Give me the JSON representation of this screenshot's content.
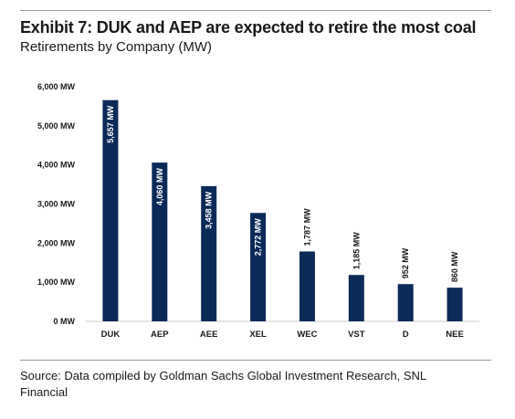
{
  "header": {
    "title": "Exhibit 7: DUK and AEP are expected to retire the most coal",
    "subtitle": "Retirements by Company (MW)"
  },
  "footer": {
    "source": "Source: Data compiled by Goldman Sachs Global Investment Research, SNL Financial"
  },
  "colors": {
    "bar": "#0b2a57",
    "bar_label": "#ffffff",
    "outside_label": "#1a1a1a"
  },
  "chart_data": {
    "type": "bar",
    "title": "Exhibit 7: DUK and AEP are expected to retire the most coal",
    "subtitle": "Retirements by Company (MW)",
    "categories": [
      "DUK",
      "AEP",
      "AEE",
      "XEL",
      "WEC",
      "VST",
      "D",
      "NEE"
    ],
    "values": [
      5657,
      4060,
      3458,
      2772,
      1787,
      1185,
      952,
      860
    ],
    "data_labels": [
      "5,657 MW",
      "4,060 MW",
      "3,458 MW",
      "2,772 MW",
      "1,787 MW",
      "1,185 MW",
      "952 MW",
      "860 MW"
    ],
    "yticks": [
      0,
      1000,
      2000,
      3000,
      4000,
      5000,
      6000
    ],
    "ytick_labels": [
      "0 MW",
      "1,000 MW",
      "2,000 MW",
      "3,000 MW",
      "4,000 MW",
      "5,000 MW",
      "6,000 MW"
    ],
    "ylim": [
      0,
      6000
    ],
    "grid": false,
    "legend": "none"
  }
}
